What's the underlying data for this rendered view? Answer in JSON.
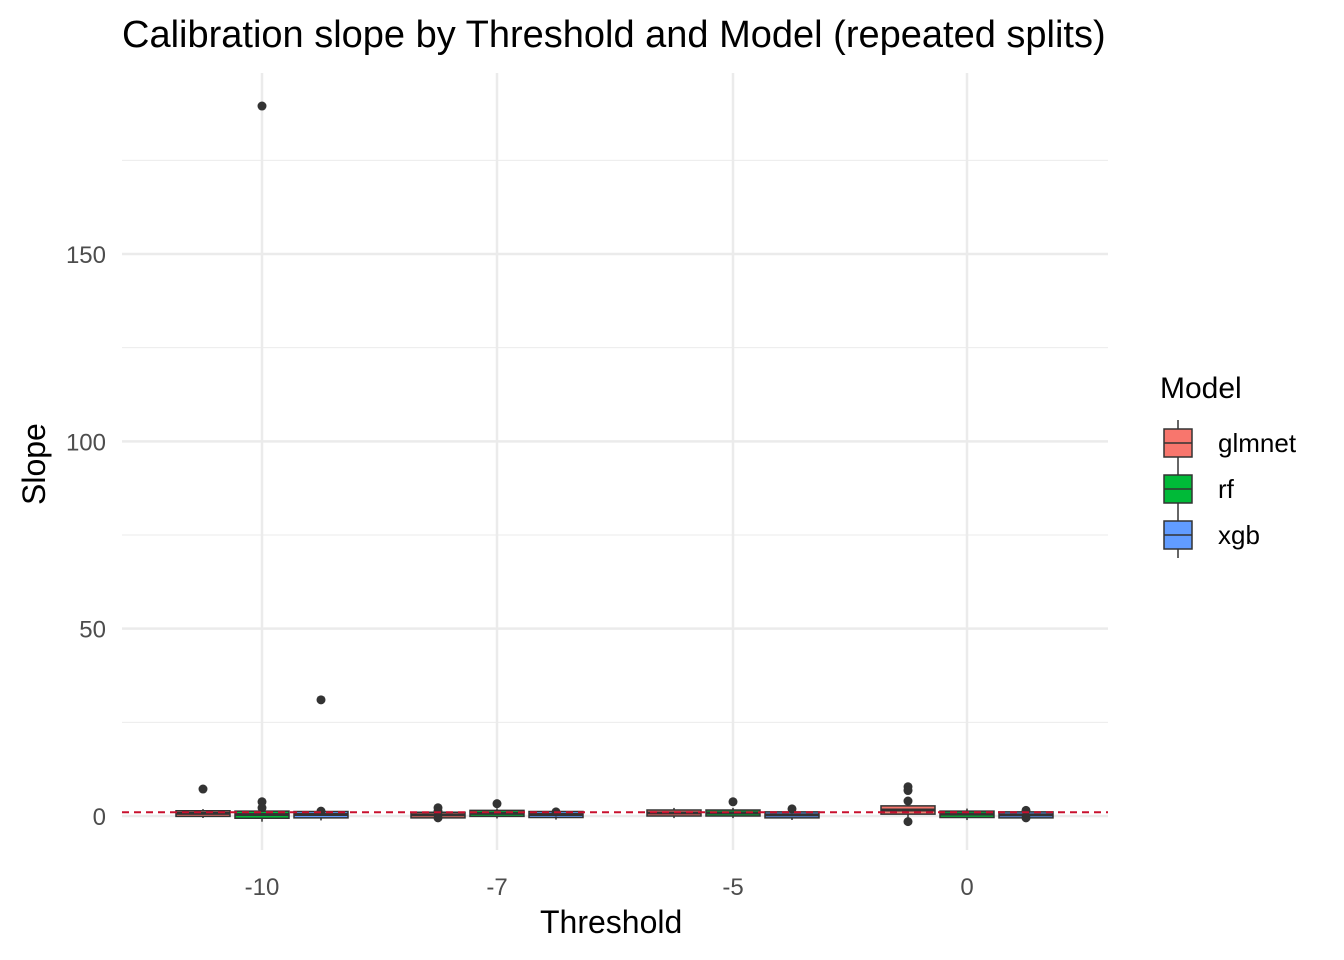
{
  "chart_data": {
    "type": "box",
    "title": "Calibration slope by Threshold and Model (repeated splits)",
    "xlabel": "Threshold",
    "ylabel": "Slope",
    "categories": [
      "-10",
      "-7",
      "-5",
      "0"
    ],
    "y_ticks": [
      "0",
      "50",
      "100",
      "150"
    ],
    "ylim": [
      -10,
      195
    ],
    "reference_line": {
      "y": 1,
      "style": "dashed",
      "color": "#C8102E"
    },
    "legend": {
      "title": "Model",
      "position": "right"
    },
    "grid": true,
    "series": [
      {
        "name": "glmnet",
        "color": "#F8766D",
        "boxes": [
          {
            "category": "-10",
            "q1": 0.3,
            "median": 0.7,
            "q3": 1.0,
            "outliers": [
              7.2
            ]
          },
          {
            "category": "-7",
            "q1": -0.1,
            "median": 0.3,
            "q3": 0.6,
            "outliers": [
              2.2,
              1.2,
              -0.5
            ]
          },
          {
            "category": "-5",
            "q1": 0.4,
            "median": 0.8,
            "q3": 1.2,
            "outliers": []
          },
          {
            "category": "0",
            "q1": 0.9,
            "median": 1.6,
            "q3": 2.3,
            "outliers": [
              7.8,
              6.8,
              4.0,
              -1.5
            ]
          }
        ]
      },
      {
        "name": "rf",
        "color": "#00BA38",
        "boxes": [
          {
            "category": "-10",
            "q1": -0.2,
            "median": 0.4,
            "q3": 0.9,
            "outliers": [
              189.5,
              3.8,
              2.2
            ]
          },
          {
            "category": "-7",
            "q1": 0.3,
            "median": 0.7,
            "q3": 1.1,
            "outliers": [
              3.3
            ]
          },
          {
            "category": "-5",
            "q1": 0.4,
            "median": 0.8,
            "q3": 1.2,
            "outliers": [
              3.8
            ]
          },
          {
            "category": "0",
            "q1": 0.0,
            "median": 0.5,
            "q3": 0.9,
            "outliers": []
          }
        ]
      },
      {
        "name": "xgb",
        "color": "#619CFF",
        "boxes": [
          {
            "category": "-10",
            "q1": -0.1,
            "median": 0.4,
            "q3": 0.8,
            "outliers": [
              31.0,
              1.3
            ]
          },
          {
            "category": "-7",
            "q1": 0.0,
            "median": 0.4,
            "q3": 0.8,
            "outliers": [
              1.1
            ]
          },
          {
            "category": "-5",
            "q1": -0.1,
            "median": 0.3,
            "q3": 0.7,
            "outliers": [
              1.9
            ]
          },
          {
            "category": "0",
            "q1": -0.1,
            "median": 0.3,
            "q3": 0.7,
            "outliers": [
              1.5,
              -0.5
            ]
          }
        ]
      }
    ]
  }
}
